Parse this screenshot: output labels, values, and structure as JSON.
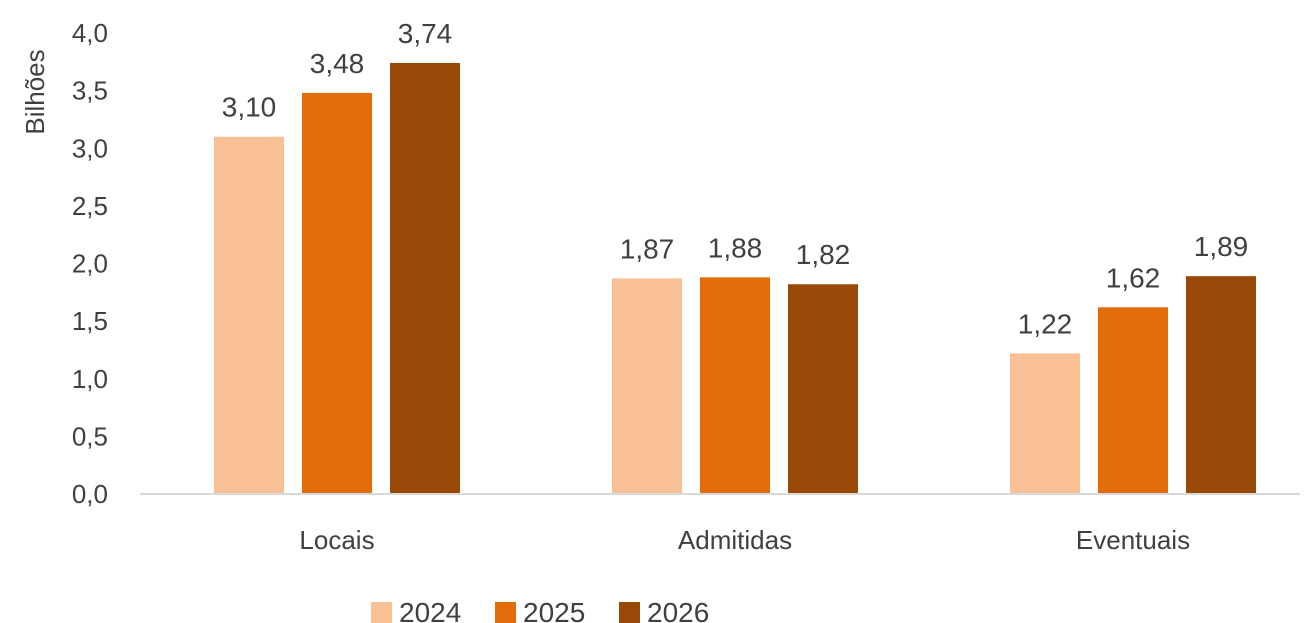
{
  "chart_data": {
    "type": "bar",
    "title": "",
    "xlabel": "",
    "ylabel": "Bilhões",
    "categories": [
      "Locais",
      "Admitidas",
      "Eventuais"
    ],
    "series": [
      {
        "name": "2024",
        "color": "#F8C094",
        "values": [
          3.1,
          1.87,
          1.22
        ],
        "labels": [
          "3,10",
          "1,87",
          "1,22"
        ]
      },
      {
        "name": "2025",
        "color": "#E36C0A",
        "values": [
          3.48,
          1.88,
          1.62
        ],
        "labels": [
          "3,48",
          "1,88",
          "1,62"
        ]
      },
      {
        "name": "2026",
        "color": "#984807",
        "values": [
          3.74,
          1.82,
          1.89
        ],
        "labels": [
          "3,74",
          "1,82",
          "1,89"
        ]
      }
    ],
    "ylim": [
      0,
      4
    ],
    "yticks": [
      0,
      0.5,
      1,
      1.5,
      2,
      2.5,
      3,
      3.5,
      4
    ],
    "ytick_labels": [
      "0,0",
      "0,5",
      "1,0",
      "1,5",
      "2,0",
      "2,5",
      "3,0",
      "3,5",
      "4,0"
    ],
    "grid": false,
    "legend_position": "bottom"
  }
}
